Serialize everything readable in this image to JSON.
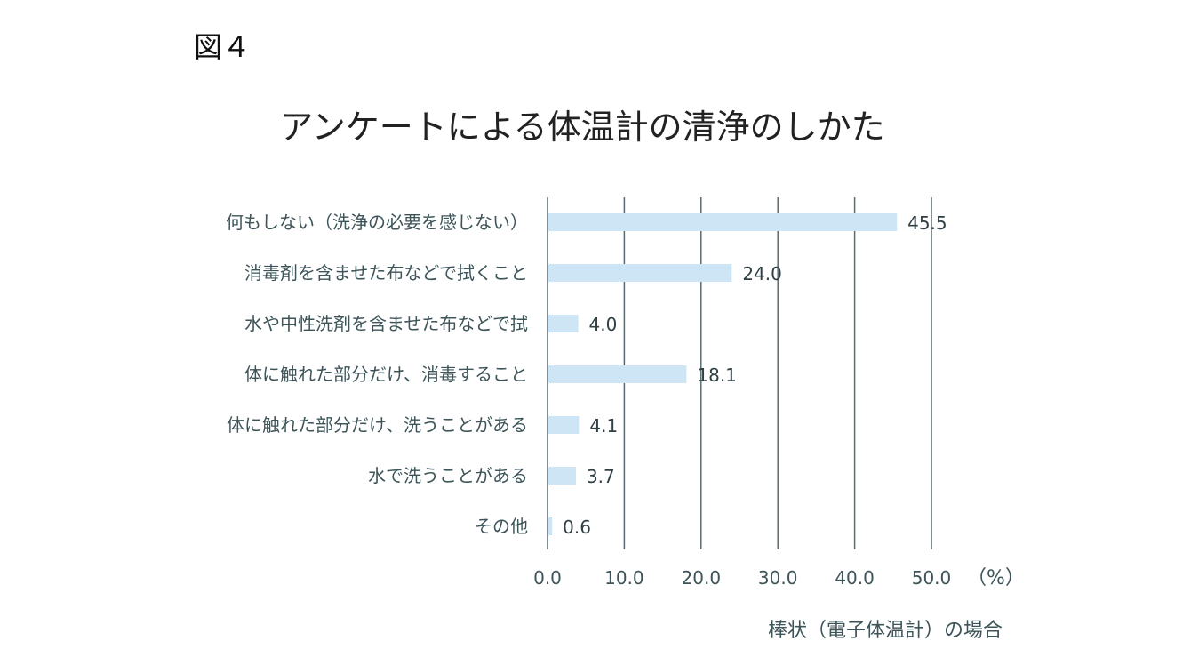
{
  "figure_label": "図４",
  "chart_data": {
    "type": "bar",
    "orientation": "horizontal",
    "title": "アンケートによる体温計の清浄のしかた",
    "categories": [
      "何もしない（洗浄の必要を感じない）",
      "消毒剤を含ませた布などで拭くこと",
      "水や中性洗剤を含ませた布などで拭",
      "体に触れた部分だけ、消毒すること",
      "体に触れた部分だけ、洗うことがある",
      "水で洗うことがある",
      "その他"
    ],
    "values": [
      45.5,
      24.0,
      4.0,
      18.1,
      4.1,
      3.7,
      0.6
    ],
    "data_labels": [
      "45.5",
      "24.0",
      "4.0",
      "18.1",
      "4.1",
      "3.7",
      "0.6"
    ],
    "xlim": [
      0,
      50
    ],
    "xticks": [
      "0.0",
      "10.0",
      "20.0",
      "30.0",
      "40.0",
      "50.0"
    ],
    "xunit": "（%）",
    "xlabel": "棒状（電子体温計）の場合",
    "grid": "vertical",
    "colors": {
      "bar": "#cde5f4",
      "grid": "#5b6b70",
      "text": "#3d5459"
    }
  }
}
